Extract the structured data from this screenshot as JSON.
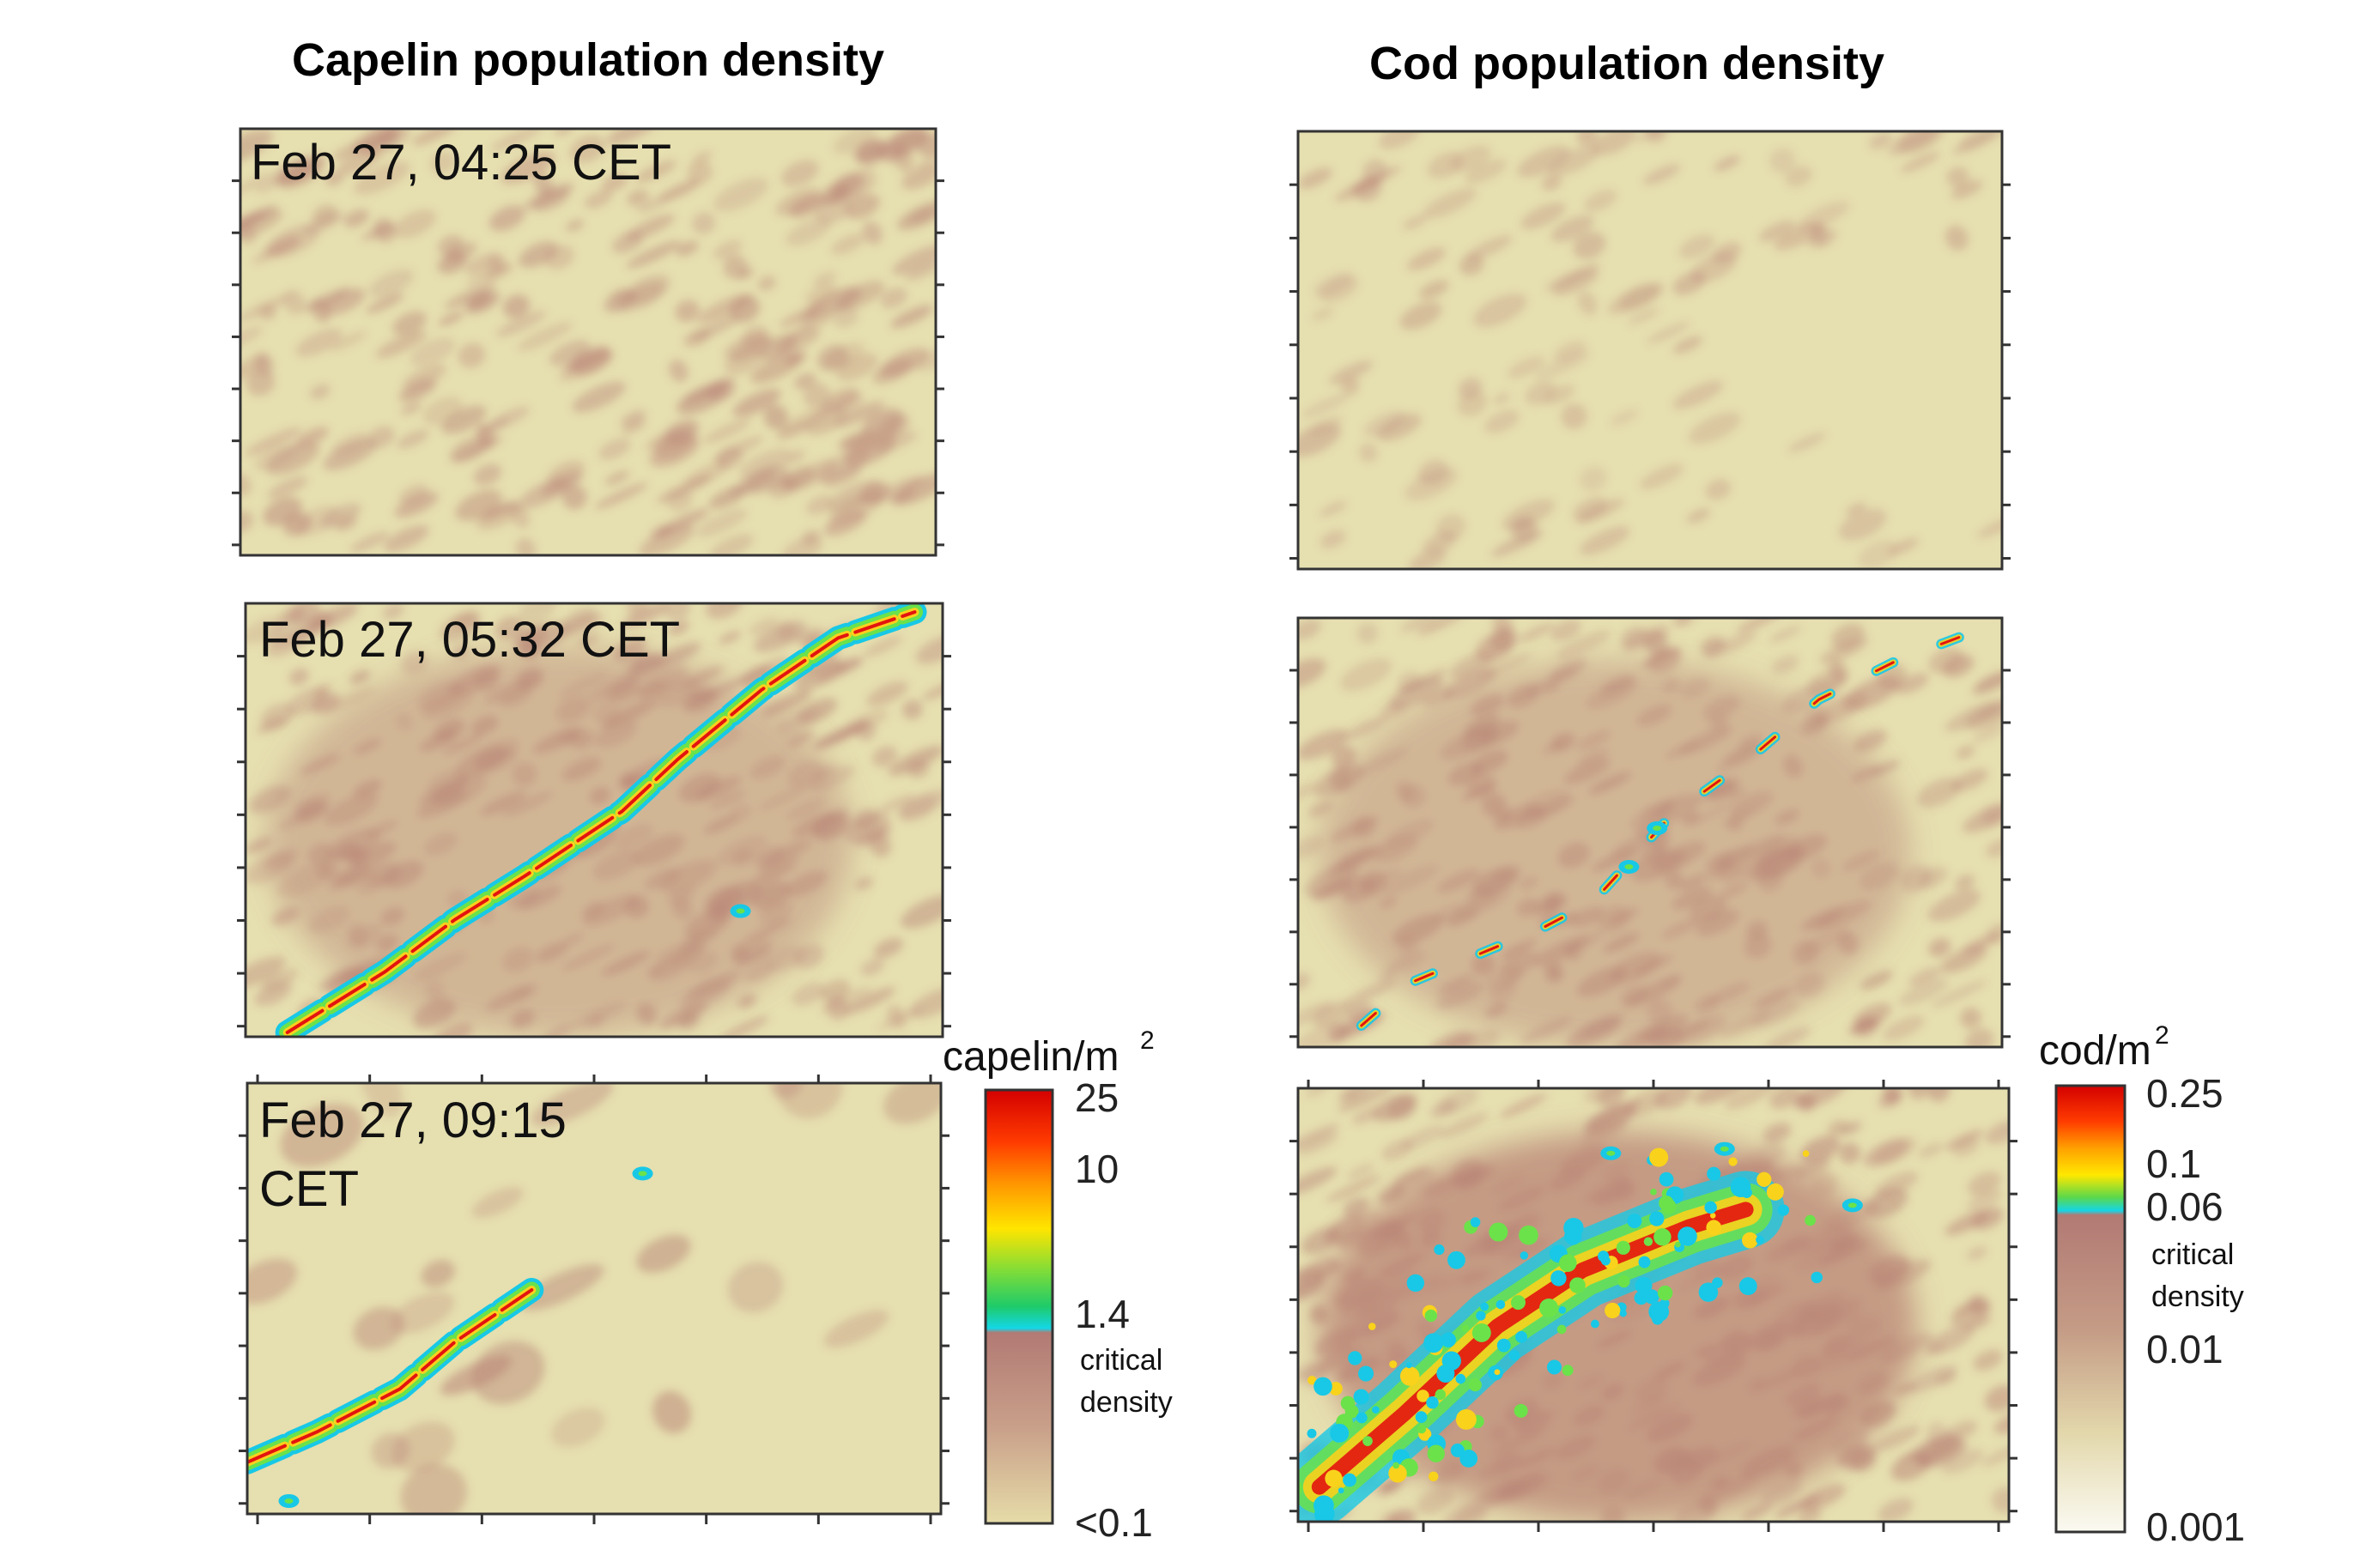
{
  "colors": {
    "background_light": "#e6dfb0",
    "background_dark": "#b98476",
    "school_outer": "#18c8e6",
    "school_mid": "#6be24a",
    "school_inner": "#f9d21c",
    "school_core": "#e3140f",
    "frame": "#333333"
  },
  "chart_data": [
    {
      "type": "heatmap",
      "title": "Capelin population density",
      "panel_label": "Feb 27, 04:25 CET",
      "field": "low",
      "school_detected": false,
      "school_track": [],
      "spots": []
    },
    {
      "type": "heatmap",
      "title": "Capelin population density",
      "panel_label": "Feb 27, 05:32 CET",
      "field": "mottled",
      "school_detected": true,
      "school_track": [
        [
          0.06,
          0.99
        ],
        [
          0.2,
          0.85
        ],
        [
          0.3,
          0.73
        ],
        [
          0.4,
          0.63
        ],
        [
          0.54,
          0.48
        ],
        [
          0.62,
          0.36
        ],
        [
          0.74,
          0.2
        ],
        [
          0.85,
          0.08
        ],
        [
          0.96,
          0.02
        ]
      ],
      "spots": [
        [
          0.71,
          0.71
        ]
      ]
    },
    {
      "type": "heatmap",
      "title": "Capelin population density",
      "panel_label": "Feb 27, 09:15 CET",
      "field": "sparse",
      "school_detected": true,
      "school_track": [
        [
          0.0,
          0.88
        ],
        [
          0.1,
          0.81
        ],
        [
          0.22,
          0.71
        ],
        [
          0.3,
          0.6
        ],
        [
          0.41,
          0.48
        ]
      ],
      "spots": [
        [
          0.57,
          0.21
        ],
        [
          0.06,
          0.97
        ]
      ]
    },
    {
      "type": "heatmap",
      "title": "Cod population density",
      "panel_label": "",
      "field": "light",
      "school_detected": false,
      "school_track": [],
      "spots": []
    },
    {
      "type": "heatmap",
      "title": "Cod population density",
      "panel_label": "",
      "field": "mottled",
      "school_detected": true,
      "school_track": [
        [
          0.09,
          0.95
        ],
        [
          0.16,
          0.85
        ],
        [
          0.35,
          0.72
        ],
        [
          0.42,
          0.66
        ],
        [
          0.53,
          0.46
        ],
        [
          0.64,
          0.33
        ],
        [
          0.74,
          0.19
        ],
        [
          0.85,
          0.1
        ],
        [
          0.98,
          0.02
        ]
      ],
      "spots": [
        [
          0.51,
          0.49
        ],
        [
          0.47,
          0.58
        ]
      ]
    },
    {
      "type": "heatmap",
      "title": "Cod population density",
      "panel_label": "",
      "field": "dense",
      "school_detected": true,
      "school_track": [
        [
          0.03,
          0.92
        ],
        [
          0.15,
          0.75
        ],
        [
          0.28,
          0.55
        ],
        [
          0.4,
          0.42
        ],
        [
          0.55,
          0.32
        ],
        [
          0.63,
          0.28
        ]
      ],
      "spots": [
        [
          0.44,
          0.15
        ],
        [
          0.6,
          0.14
        ],
        [
          0.78,
          0.27
        ]
      ]
    }
  ],
  "titles": {
    "capelin": "Capelin population density",
    "cod": "Cod population density"
  },
  "panels": {
    "capelin": [
      "Feb 27, 04:25 CET",
      "Feb 27, 05:32 CET",
      "Feb 27, 09:15",
      "CET"
    ]
  },
  "colorbars": {
    "capelin": {
      "unit": "capelin/m",
      "unit_exponent": "2",
      "ticks": [
        "25",
        "10",
        "1.4",
        "<0.1"
      ],
      "note_line1": "critical",
      "note_line2": "density",
      "critical_value": 1.4
    },
    "cod": {
      "unit": "cod/m",
      "unit_exponent": "2",
      "ticks": [
        "0.25",
        "0.1",
        "0.06",
        "0.01",
        "0.001"
      ],
      "note_line1": "critical",
      "note_line2": "density",
      "critical_value": 0.06
    }
  }
}
